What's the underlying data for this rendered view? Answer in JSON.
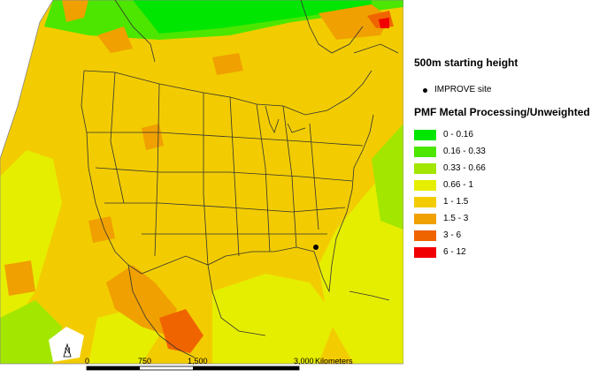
{
  "map": {
    "scale_bar": {
      "ticks": [
        "0",
        "750",
        "1,500",
        "3,000"
      ],
      "units": "Kilometers"
    },
    "north_arrow": "N"
  },
  "legend": {
    "title": "500m starting height",
    "site_label": "IMPROVE site",
    "heading": "PMF Metal Processing/Unweighted",
    "classes": [
      {
        "label": "0 - 0.16",
        "color": "#00e600"
      },
      {
        "label": "0.16 - 0.33",
        "color": "#4ce600"
      },
      {
        "label": "0.33 - 0.66",
        "color": "#a3e600"
      },
      {
        "label": "0.66 - 1",
        "color": "#e6ee00"
      },
      {
        "label": "1 - 1.5",
        "color": "#f2cc00"
      },
      {
        "label": "1.5 - 3",
        "color": "#f0a000"
      },
      {
        "label": "3 - 6",
        "color": "#f06400"
      },
      {
        "label": "6 - 12",
        "color": "#f00000"
      }
    ]
  }
}
